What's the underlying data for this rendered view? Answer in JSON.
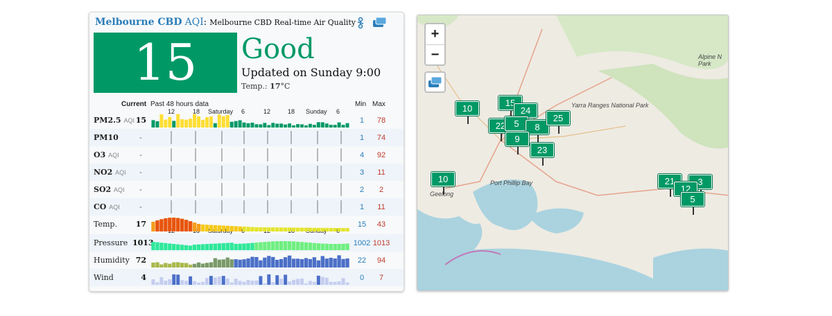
{
  "header": {
    "city": "Melbourne CBD",
    "aqi_label": "AQI",
    "separator": ":",
    "description": "Melbourne CBD Real-time Air Quality"
  },
  "current": {
    "aqi": "15",
    "level": "Good",
    "updated": "Updated on Sunday 9:00",
    "temp_label": "Temp.:",
    "temp_value": "17",
    "temp_unit": "°C",
    "aqi_color": "#009966"
  },
  "table": {
    "current_label": "Current",
    "past_label": "Past 48 hours data",
    "min_label": "Min",
    "max_label": "Max",
    "time_ticks": [
      "12",
      "18",
      "Saturday",
      "6",
      "12",
      "18",
      "Sunday",
      "6"
    ],
    "rows": [
      {
        "name": "PM2.5",
        "sub": "AQI",
        "current": "15",
        "min": "1",
        "max": "78"
      },
      {
        "name": "PM10",
        "sub": "",
        "current": "-",
        "min": "1",
        "max": "74"
      },
      {
        "name": "O3",
        "sub": "AQI",
        "current": "-",
        "min": "4",
        "max": "92"
      },
      {
        "name": "NO2",
        "sub": "AQI",
        "current": "-",
        "min": "3",
        "max": "11"
      },
      {
        "name": "SO2",
        "sub": "AQI",
        "current": "-",
        "min": "2",
        "max": "2"
      },
      {
        "name": "CO",
        "sub": "AQI",
        "current": "-",
        "min": "1",
        "max": "11"
      },
      {
        "name": "Temp.",
        "sub": "",
        "current": "17",
        "min": "15",
        "max": "43"
      },
      {
        "name": "Pressure",
        "sub": "",
        "current": "1013",
        "min": "1002",
        "max": "1013"
      },
      {
        "name": "Humidity",
        "sub": "",
        "current": "72",
        "min": "22",
        "max": "94"
      },
      {
        "name": "Wind",
        "sub": "",
        "current": "4",
        "min": "0",
        "max": "7"
      }
    ]
  },
  "map": {
    "zoom_in": "+",
    "zoom_out": "−",
    "labels": [
      "Yarra Ranges National Park",
      "Port Phillip Bay",
      "Geelong",
      "Alpine N Park"
    ],
    "markers": [
      "10",
      "15",
      "24",
      "22",
      "5",
      "8",
      "25",
      "9",
      "23",
      "10",
      "21",
      "3",
      "12",
      "5"
    ]
  },
  "colors": {
    "good": "#009966",
    "moderate": "#ffde33",
    "min_text": "#2a7db9",
    "max_text": "#c0392b"
  }
}
